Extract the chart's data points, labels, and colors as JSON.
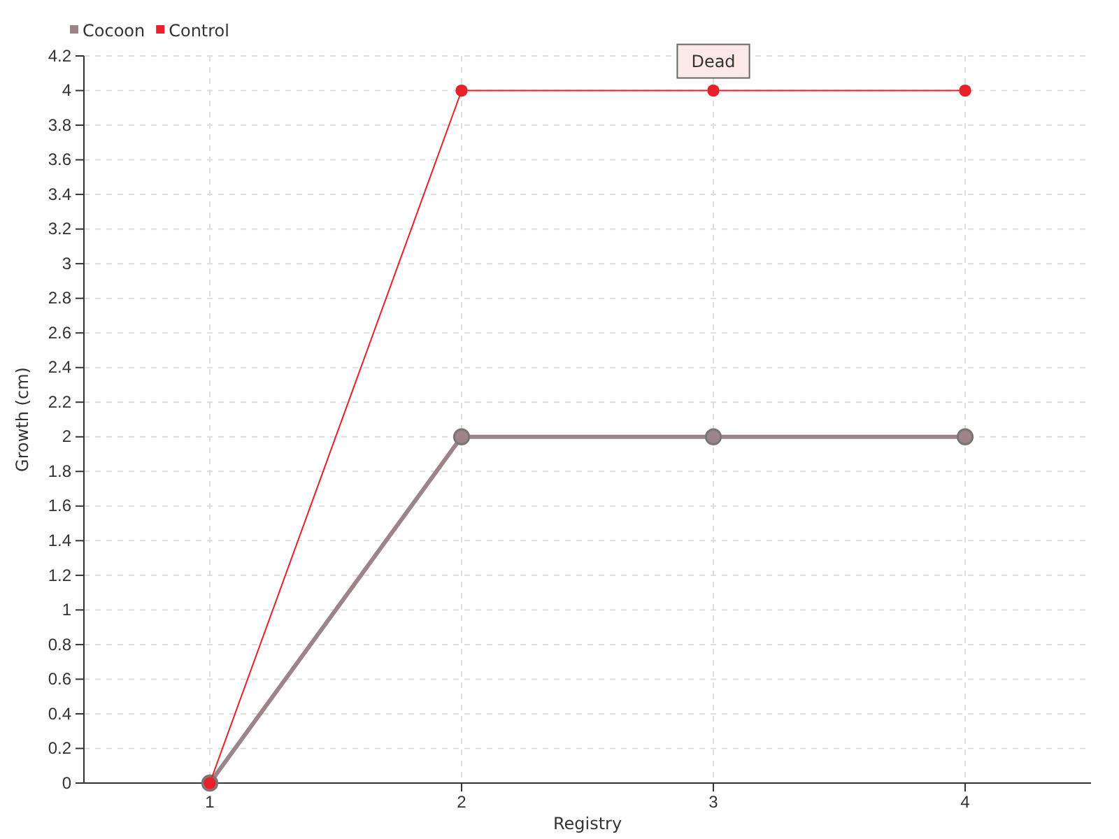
{
  "chart_data": {
    "type": "line",
    "xlabel": "Registry",
    "ylabel": "Growth (cm)",
    "categories": [
      "1",
      "2",
      "3",
      "4"
    ],
    "series": [
      {
        "name": "Cocoon",
        "color": "#9c8489",
        "values": [
          0,
          2,
          2,
          2
        ]
      },
      {
        "name": "Control",
        "color": "#e8202a",
        "values": [
          0,
          4,
          4,
          4
        ]
      }
    ],
    "ylim": [
      0,
      4.2
    ],
    "yticks": [
      0,
      0.2,
      0.4,
      0.6,
      0.8,
      1,
      1.2,
      1.4,
      1.6,
      1.8,
      2,
      2.2,
      2.4,
      2.6,
      2.8,
      3,
      3.2,
      3.4,
      3.6,
      3.8,
      4,
      4.2
    ],
    "grid": true,
    "legend": "top left",
    "marker": "circle",
    "line_style": "solid",
    "annotations": [
      {
        "text": "Dead",
        "x": "3",
        "y": 4
      }
    ]
  }
}
